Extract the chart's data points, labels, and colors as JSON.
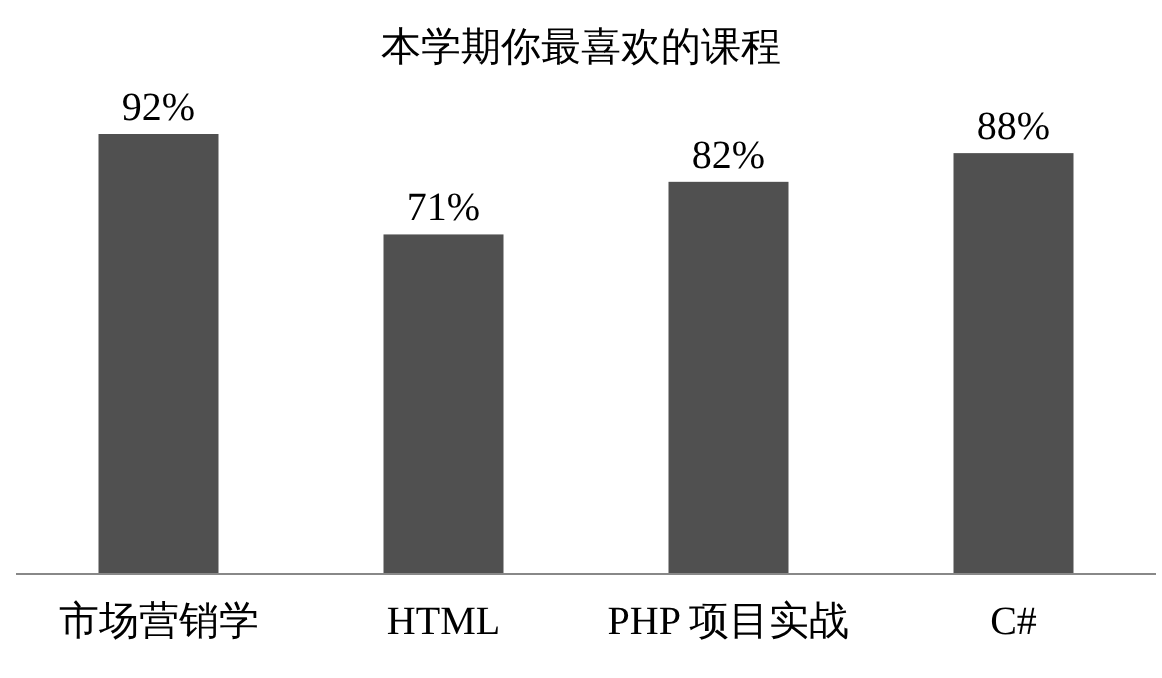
{
  "chart_data": {
    "type": "bar",
    "title": "本学期你最喜欢的课程",
    "categories": [
      "市场营销学",
      "HTML",
      "PHP 项目实战",
      "C#"
    ],
    "values": [
      92,
      71,
      82,
      88
    ],
    "value_labels": [
      "92%",
      "71%",
      "82%",
      "88%"
    ],
    "color": "#505050"
  }
}
